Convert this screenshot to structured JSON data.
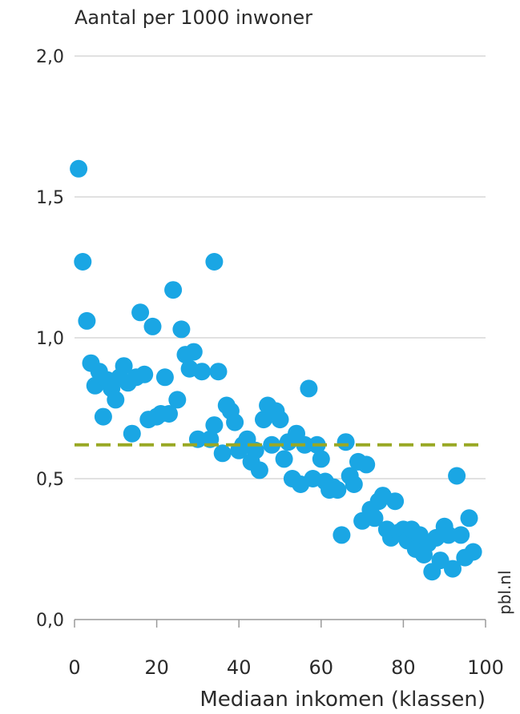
{
  "chart_data": {
    "type": "scatter",
    "ylabel": "Aantal per 1000 inwoner",
    "xlabel": "Mediaan inkomen (klassen)",
    "source": "pbl.nl",
    "xlim": [
      0,
      100
    ],
    "ylim": [
      0,
      2.0
    ],
    "xticks": [
      "0",
      "20",
      "40",
      "60",
      "80",
      "100"
    ],
    "yticks": [
      "0,0",
      "0,5",
      "1,0",
      "1,5",
      "2,0"
    ],
    "grid": true,
    "reference_line": {
      "y": 0.62,
      "style": "dashed",
      "color": "#99a824"
    },
    "point_color": "#1aa6e4",
    "points": [
      [
        1,
        1.6
      ],
      [
        2,
        1.27
      ],
      [
        3,
        1.06
      ],
      [
        4,
        0.91
      ],
      [
        5,
        0.83
      ],
      [
        6,
        0.88
      ],
      [
        7,
        0.72
      ],
      [
        8,
        0.85
      ],
      [
        9,
        0.82
      ],
      [
        10,
        0.78
      ],
      [
        11,
        0.86
      ],
      [
        12,
        0.9
      ],
      [
        13,
        0.84
      ],
      [
        14,
        0.66
      ],
      [
        15,
        0.86
      ],
      [
        16,
        1.09
      ],
      [
        17,
        0.87
      ],
      [
        18,
        0.71
      ],
      [
        19,
        1.04
      ],
      [
        20,
        0.72
      ],
      [
        21,
        0.73
      ],
      [
        22,
        0.86
      ],
      [
        23,
        0.73
      ],
      [
        24,
        1.17
      ],
      [
        25,
        0.78
      ],
      [
        26,
        1.03
      ],
      [
        27,
        0.94
      ],
      [
        28,
        0.89
      ],
      [
        29,
        0.95
      ],
      [
        30,
        0.64
      ],
      [
        31,
        0.88
      ],
      [
        33,
        0.64
      ],
      [
        34,
        0.69
      ],
      [
        34,
        1.27
      ],
      [
        35,
        0.88
      ],
      [
        36,
        0.59
      ],
      [
        37,
        0.76
      ],
      [
        38,
        0.74
      ],
      [
        39,
        0.7
      ],
      [
        40,
        0.6
      ],
      [
        41,
        0.62
      ],
      [
        42,
        0.64
      ],
      [
        43,
        0.56
      ],
      [
        44,
        0.6
      ],
      [
        45,
        0.53
      ],
      [
        46,
        0.71
      ],
      [
        47,
        0.76
      ],
      [
        48,
        0.62
      ],
      [
        49,
        0.74
      ],
      [
        50,
        0.71
      ],
      [
        51,
        0.57
      ],
      [
        52,
        0.63
      ],
      [
        53,
        0.5
      ],
      [
        54,
        0.66
      ],
      [
        55,
        0.48
      ],
      [
        56,
        0.62
      ],
      [
        57,
        0.82
      ],
      [
        58,
        0.5
      ],
      [
        59,
        0.62
      ],
      [
        60,
        0.57
      ],
      [
        61,
        0.49
      ],
      [
        62,
        0.46
      ],
      [
        63,
        0.47
      ],
      [
        64,
        0.46
      ],
      [
        65,
        0.3
      ],
      [
        66,
        0.63
      ],
      [
        67,
        0.51
      ],
      [
        68,
        0.48
      ],
      [
        69,
        0.56
      ],
      [
        70,
        0.35
      ],
      [
        71,
        0.55
      ],
      [
        72,
        0.39
      ],
      [
        73,
        0.36
      ],
      [
        74,
        0.42
      ],
      [
        75,
        0.44
      ],
      [
        76,
        0.32
      ],
      [
        77,
        0.29
      ],
      [
        78,
        0.42
      ],
      [
        79,
        0.31
      ],
      [
        80,
        0.32
      ],
      [
        81,
        0.28
      ],
      [
        82,
        0.32
      ],
      [
        83,
        0.25
      ],
      [
        84,
        0.3
      ],
      [
        85,
        0.23
      ],
      [
        86,
        0.27
      ],
      [
        87,
        0.17
      ],
      [
        88,
        0.29
      ],
      [
        89,
        0.21
      ],
      [
        90,
        0.33
      ],
      [
        91,
        0.3
      ],
      [
        92,
        0.18
      ],
      [
        93,
        0.51
      ],
      [
        94,
        0.3
      ],
      [
        95,
        0.22
      ],
      [
        96,
        0.36
      ],
      [
        97,
        0.24
      ]
    ]
  }
}
